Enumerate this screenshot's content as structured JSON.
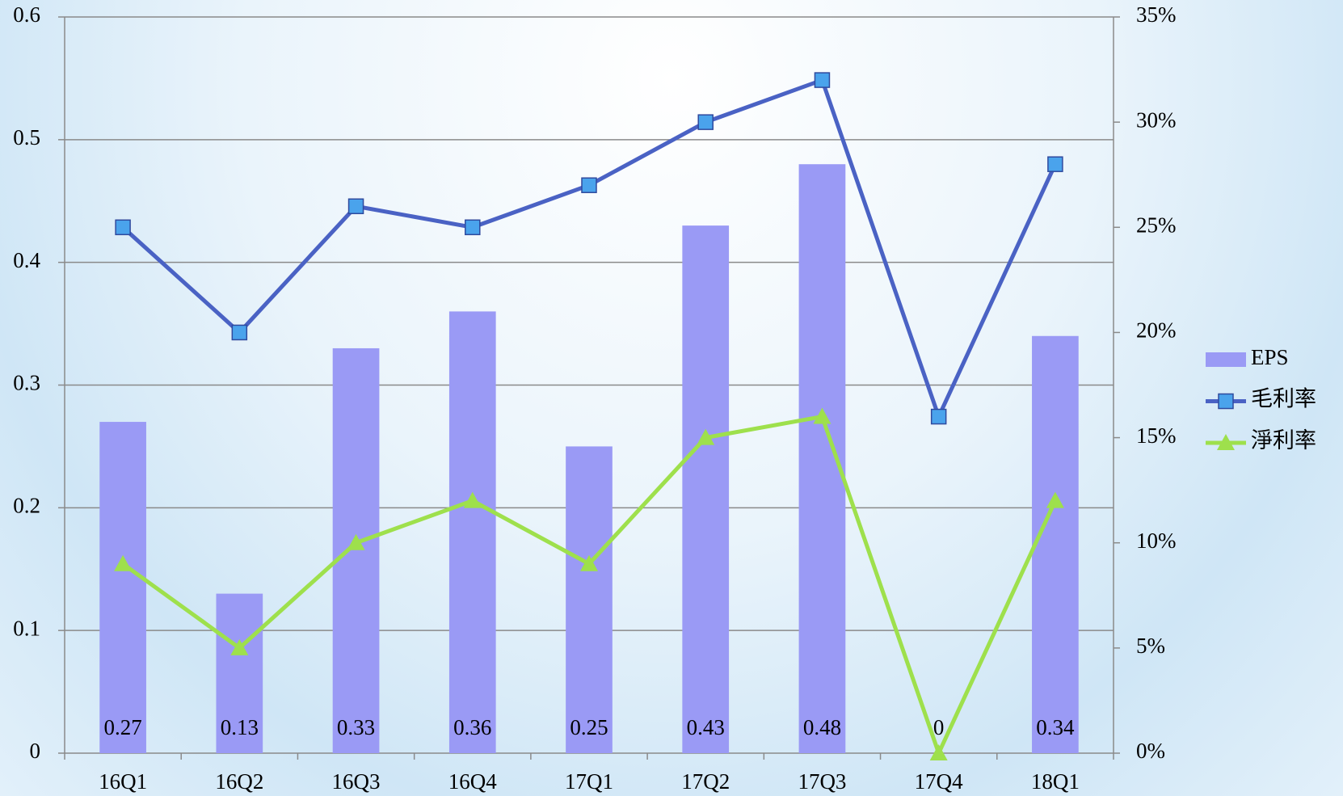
{
  "chart_data": {
    "type": "bar_line",
    "categories": [
      "16Q1",
      "16Q2",
      "16Q3",
      "16Q4",
      "17Q1",
      "17Q2",
      "17Q3",
      "17Q4",
      "18Q1"
    ],
    "series": [
      {
        "name": "EPS",
        "type": "bar",
        "color": "#9a9af5",
        "values": [
          0.27,
          0.13,
          0.33,
          0.36,
          0.25,
          0.43,
          0.48,
          0,
          0.34
        ]
      },
      {
        "name": "毛利率",
        "type": "line",
        "marker": "square",
        "color": "#4a62c4",
        "marker_color": "#4aa3ec",
        "axis": "y2",
        "values": [
          25,
          20,
          26,
          25,
          27,
          30,
          32,
          16,
          28
        ]
      },
      {
        "name": "淨利率",
        "type": "line",
        "marker": "triangle",
        "color": "#9ee04c",
        "marker_color": "#9ee04c",
        "axis": "y2",
        "values": [
          9,
          5,
          10,
          12,
          9,
          15,
          16,
          0,
          12
        ]
      }
    ],
    "ylim": [
      0,
      0.6
    ],
    "yticks": [
      0,
      0.1,
      0.2,
      0.3,
      0.4,
      0.5,
      0.6
    ],
    "y2lim": [
      0,
      35
    ],
    "y2ticks": [
      {
        "value": 0,
        "label": "0%"
      },
      {
        "value": 5,
        "label": "5%"
      },
      {
        "value": 10,
        "label": "10%"
      },
      {
        "value": 15,
        "label": "15%"
      },
      {
        "value": 20,
        "label": "20%"
      },
      {
        "value": 25,
        "label": "25%"
      },
      {
        "value": 30,
        "label": "30%"
      },
      {
        "value": 35,
        "label": "35%"
      }
    ],
    "grid": true,
    "legend": "right"
  }
}
